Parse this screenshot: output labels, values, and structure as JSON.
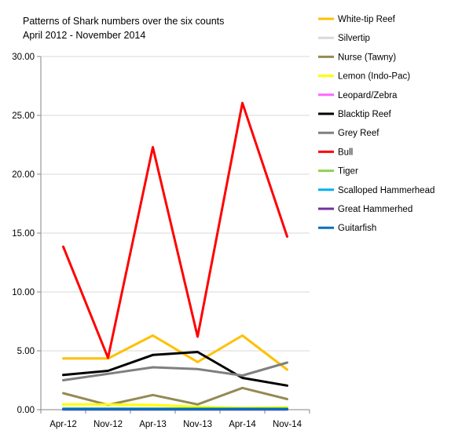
{
  "chart_data": {
    "type": "line",
    "title": [
      "Patterns of Shark numbers over the six counts",
      "April 2012  - November 2014"
    ],
    "xlabel": "",
    "ylabel": "",
    "categories": [
      "Apr-12",
      "Nov-12",
      "Apr-13",
      "Nov-13",
      "Apr-14",
      "Nov-14"
    ],
    "ylim": [
      0,
      30
    ],
    "yticks": [
      "0.00",
      "5.00",
      "10.00",
      "15.00",
      "20.00",
      "25.00",
      "30.00"
    ],
    "grid": "horizontal",
    "legend": "right",
    "series": [
      {
        "name": "White-tip Reef",
        "color": "#FFC000",
        "values": [
          4.35,
          4.35,
          6.3,
          4.05,
          6.3,
          3.4
        ]
      },
      {
        "name": "Silvertip",
        "color": "#D9D9D9",
        "values": [
          0.05,
          0.05,
          0.05,
          0.05,
          0.05,
          0.05
        ]
      },
      {
        "name": "Nurse (Tawny)",
        "color": "#948A54",
        "values": [
          1.4,
          0.4,
          1.25,
          0.45,
          1.85,
          0.9
        ]
      },
      {
        "name": "Lemon (Indo-Pac)",
        "color": "#FFFF00",
        "values": [
          0.45,
          0.45,
          0.4,
          0.25,
          0.15,
          0.2
        ]
      },
      {
        "name": "Leopard/Zebra",
        "color": "#FF66FF",
        "values": [
          0.05,
          0.05,
          0.05,
          0.05,
          0.05,
          0.05
        ]
      },
      {
        "name": "Blacktip Reef",
        "color": "#000000",
        "values": [
          2.95,
          3.3,
          4.65,
          4.9,
          2.7,
          2.05
        ]
      },
      {
        "name": "Grey Reef",
        "color": "#7F7F7F",
        "values": [
          2.5,
          3.05,
          3.6,
          3.45,
          2.9,
          4.0
        ]
      },
      {
        "name": "Bull",
        "color": "#FF0000",
        "values": [
          13.85,
          4.4,
          22.3,
          6.2,
          26.05,
          14.7
        ]
      },
      {
        "name": "Tiger",
        "color": "#92D050",
        "values": [
          0.1,
          0.1,
          0.1,
          0.1,
          0.1,
          0.1
        ]
      },
      {
        "name": "Scalloped Hammerhead",
        "color": "#00B0F0",
        "values": [
          0.05,
          0.05,
          0.05,
          0.05,
          0.05,
          0.05
        ]
      },
      {
        "name": "Great Hammerhed",
        "color": "#7030A0",
        "values": [
          0.02,
          0.02,
          0.02,
          0.02,
          0.02,
          0.02
        ]
      },
      {
        "name": "Guitarfish",
        "color": "#0070C0",
        "values": [
          0.05,
          0.05,
          0.05,
          0.05,
          0.05,
          0.05
        ]
      }
    ]
  }
}
